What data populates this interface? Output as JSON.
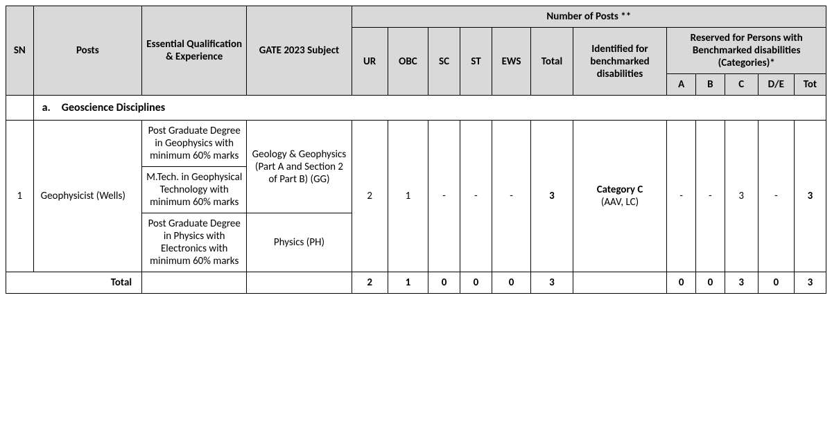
{
  "header": {
    "sn": "SN",
    "posts": "Posts",
    "qual": "Essential Qualification & Experience",
    "gate": "GATE 2023 Subject",
    "num_posts": "Number of Posts **",
    "ur": "UR",
    "obc": "OBC",
    "sc": "SC",
    "st": "ST",
    "ews": "EWS",
    "total": "Total",
    "identified": "Identified for benchmarked disabilities",
    "reserved": "Reserved for Persons with Benchmarked disabilities (Categories)*",
    "a": "A",
    "b": "B",
    "c": "C",
    "de": "D/E",
    "tot": "Tot"
  },
  "section": {
    "label": "a. Geoscience Disciplines"
  },
  "row": {
    "sn": "1",
    "post": "Geophysicist (Wells)",
    "qual1": "Post Graduate Degree in Geophysics with minimum 60% marks",
    "qual2": "M.Tech. in Geophysical Technology with minimum 60% marks",
    "qual3": "Post Graduate Degree in Physics with Electronics with minimum 60% marks",
    "gate1": "Geology & Geophysics (Part A and Section 2 of Part B) (GG)",
    "gate2": "Physics (PH)",
    "ur": "2",
    "obc": "1",
    "sc": "-",
    "st": "-",
    "ews": "-",
    "total": "3",
    "identified_line1": "Category C",
    "identified_line2": "(AAV, LC)",
    "a": "-",
    "b": "-",
    "c": "3",
    "de": "-",
    "tot": "3"
  },
  "totals": {
    "label": "Total",
    "ur": "2",
    "obc": "1",
    "sc": "0",
    "st": "0",
    "ews": "0",
    "total": "3",
    "identified": "",
    "a": "0",
    "b": "0",
    "c": "3",
    "de": "0",
    "tot": "3"
  },
  "colwidths": {
    "sn": "38",
    "posts": "150",
    "qual": "145",
    "gate": "145",
    "ur": "50",
    "obc": "56",
    "sc": "44",
    "st": "44",
    "ews": "54",
    "total": "58",
    "ident": "130",
    "a": "40",
    "b": "40",
    "c": "46",
    "de": "50",
    "tot": "44"
  }
}
